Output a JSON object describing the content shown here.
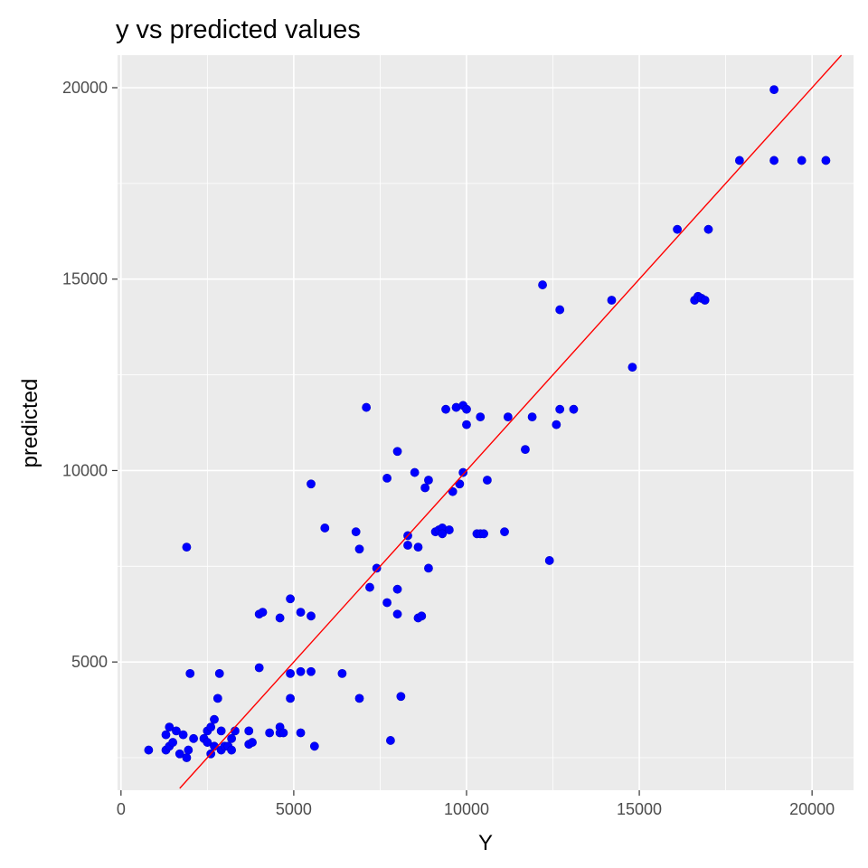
{
  "chart_data": {
    "type": "scatter",
    "title": "y vs predicted values",
    "xlabel": "Y",
    "ylabel": "predicted",
    "xlim": [
      -100,
      21200
    ],
    "ylim": [
      1650,
      20850
    ],
    "x_ticks": [
      0,
      5000,
      10000,
      15000,
      20000
    ],
    "y_ticks": [
      5000,
      10000,
      15000,
      20000
    ],
    "grid": true,
    "legend": "none",
    "point_color": "#0000ff",
    "line_color": "#ff0000",
    "panel_bg": "#ebebeb",
    "grid_color": "#ffffff",
    "reference_line": {
      "x": [
        1700,
        20850
      ],
      "y": [
        1700,
        20850
      ]
    },
    "points": [
      [
        800,
        2700
      ],
      [
        1300,
        2700
      ],
      [
        1300,
        3100
      ],
      [
        1400,
        3300
      ],
      [
        1400,
        2800
      ],
      [
        1500,
        2900
      ],
      [
        1600,
        3200
      ],
      [
        1700,
        2600
      ],
      [
        1800,
        3100
      ],
      [
        1900,
        2500
      ],
      [
        1900,
        8000
      ],
      [
        1950,
        2700
      ],
      [
        2000,
        4700
      ],
      [
        2100,
        3000
      ],
      [
        2400,
        3000
      ],
      [
        2500,
        2900
      ],
      [
        2500,
        3200
      ],
      [
        2600,
        2600
      ],
      [
        2600,
        3300
      ],
      [
        2700,
        3500
      ],
      [
        2700,
        2800
      ],
      [
        2800,
        4050
      ],
      [
        2850,
        4700
      ],
      [
        2900,
        3200
      ],
      [
        2900,
        2700
      ],
      [
        3000,
        2800
      ],
      [
        3100,
        2800
      ],
      [
        3200,
        2700
      ],
      [
        3200,
        3000
      ],
      [
        3300,
        3200
      ],
      [
        3700,
        2850
      ],
      [
        3700,
        3200
      ],
      [
        3800,
        2900
      ],
      [
        4000,
        6250
      ],
      [
        4000,
        4850
      ],
      [
        4100,
        6300
      ],
      [
        4300,
        3150
      ],
      [
        4600,
        6150
      ],
      [
        4600,
        3300
      ],
      [
        4600,
        3150
      ],
      [
        4700,
        3150
      ],
      [
        4900,
        4700
      ],
      [
        4900,
        6650
      ],
      [
        4900,
        4050
      ],
      [
        5200,
        4750
      ],
      [
        5200,
        6300
      ],
      [
        5200,
        3150
      ],
      [
        5500,
        9650
      ],
      [
        5500,
        6200
      ],
      [
        5500,
        4750
      ],
      [
        5600,
        2800
      ],
      [
        5900,
        8500
      ],
      [
        6400,
        4700
      ],
      [
        6800,
        8400
      ],
      [
        6900,
        7950
      ],
      [
        6900,
        4050
      ],
      [
        7100,
        11650
      ],
      [
        7200,
        6950
      ],
      [
        7400,
        7450
      ],
      [
        7700,
        9800
      ],
      [
        7700,
        6550
      ],
      [
        7800,
        2950
      ],
      [
        8000,
        10500
      ],
      [
        8000,
        6900
      ],
      [
        8000,
        6250
      ],
      [
        8100,
        4100
      ],
      [
        8300,
        8300
      ],
      [
        8300,
        8050
      ],
      [
        8500,
        9950
      ],
      [
        8600,
        6150
      ],
      [
        8600,
        8000
      ],
      [
        8700,
        6200
      ],
      [
        8800,
        9550
      ],
      [
        8900,
        9750
      ],
      [
        8900,
        7450
      ],
      [
        9100,
        8400
      ],
      [
        9200,
        8450
      ],
      [
        9300,
        8500
      ],
      [
        9300,
        8350
      ],
      [
        9400,
        11600
      ],
      [
        9500,
        8450
      ],
      [
        9600,
        9450
      ],
      [
        9700,
        11650
      ],
      [
        9800,
        9650
      ],
      [
        9900,
        9950
      ],
      [
        9900,
        11700
      ],
      [
        10000,
        11600
      ],
      [
        10000,
        11200
      ],
      [
        10300,
        8350
      ],
      [
        10400,
        11400
      ],
      [
        10400,
        8350
      ],
      [
        10500,
        8350
      ],
      [
        10600,
        9750
      ],
      [
        11100,
        8400
      ],
      [
        11200,
        11400
      ],
      [
        11700,
        10550
      ],
      [
        11900,
        11400
      ],
      [
        12200,
        14850
      ],
      [
        12400,
        7650
      ],
      [
        12600,
        11200
      ],
      [
        12700,
        14200
      ],
      [
        12700,
        11600
      ],
      [
        13100,
        11600
      ],
      [
        14200,
        14450
      ],
      [
        14800,
        12700
      ],
      [
        16100,
        16300
      ],
      [
        16600,
        14450
      ],
      [
        16700,
        14550
      ],
      [
        16800,
        14500
      ],
      [
        16900,
        14450
      ],
      [
        17000,
        16300
      ],
      [
        17900,
        18100
      ],
      [
        18900,
        19950
      ],
      [
        18900,
        18100
      ],
      [
        19700,
        18100
      ],
      [
        20400,
        18100
      ]
    ]
  }
}
